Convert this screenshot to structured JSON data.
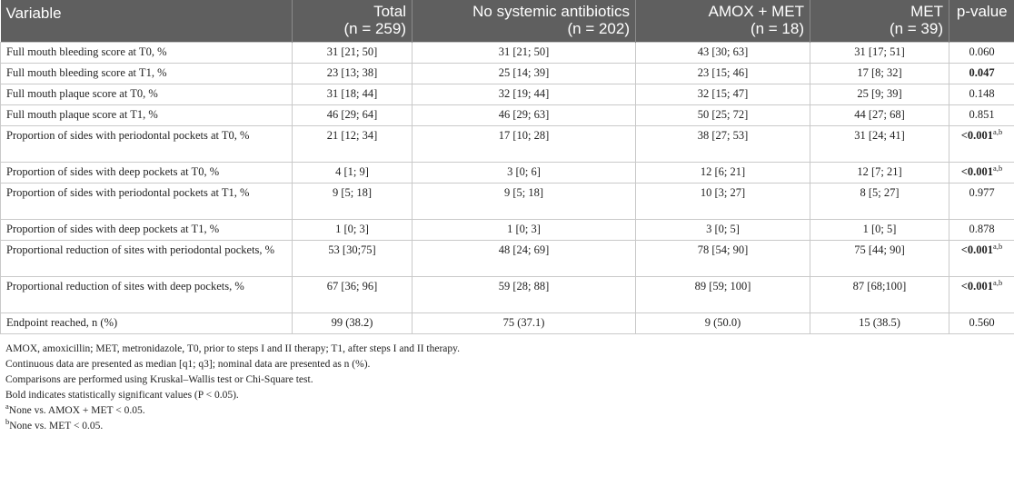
{
  "table": {
    "headers": {
      "variable": "Variable",
      "total": {
        "label": "Total",
        "n": "(n = 259)"
      },
      "no_antibiotics": {
        "label": "No systemic antibiotics",
        "n": "(n = 202)"
      },
      "amox_met": {
        "label": "AMOX + MET",
        "n": "(n = 18)"
      },
      "met": {
        "label": "MET",
        "n": "(n = 39)"
      },
      "pvalue": "p-value"
    },
    "rows": [
      {
        "variable": "Full mouth bleeding score at T0, %",
        "total": "31 [21; 50]",
        "no_antibiotics": "31 [21; 50]",
        "amox_met": "43 [30; 63]",
        "met": "31 [17; 51]",
        "p": "0.060",
        "sup": ""
      },
      {
        "variable": "Full mouth bleeding score at T1, %",
        "total": "23 [13; 38]",
        "no_antibiotics": "25 [14; 39]",
        "amox_met": "23 [15; 46]",
        "met": "17 [8; 32]",
        "p": "0.047",
        "sup": ""
      },
      {
        "variable": "Full mouth plaque score at T0, %",
        "total": "31 [18; 44]",
        "no_antibiotics": "32 [19; 44]",
        "amox_met": "32 [15; 47]",
        "met": "25 [9; 39]",
        "p": "0.148",
        "sup": ""
      },
      {
        "variable": "Full mouth plaque score at T1, %",
        "total": "46 [29; 64]",
        "no_antibiotics": "46 [29; 63]",
        "amox_met": "50 [25; 72]",
        "met": "44 [27; 68]",
        "p": "0.851",
        "sup": ""
      },
      {
        "variable": "Proportion of sides with periodontal pockets at T0, %",
        "total": "21 [12; 34]",
        "no_antibiotics": "17 [10; 28]",
        "amox_met": "38 [27; 53]",
        "met": "31 [24; 41]",
        "p": "<0.001",
        "sup": "a,b"
      },
      {
        "variable": "Proportion of sides with deep pockets at T0, %",
        "total": "4 [1; 9]",
        "no_antibiotics": "3 [0; 6]",
        "amox_met": "12 [6; 21]",
        "met": "12 [7; 21]",
        "p": "<0.001",
        "sup": "a,b"
      },
      {
        "variable": "Proportion of sides with periodontal pockets at T1, %",
        "total": "9 [5; 18]",
        "no_antibiotics": "9 [5; 18]",
        "amox_met": "10 [3; 27]",
        "met": "8 [5; 27]",
        "p": "0.977",
        "sup": ""
      },
      {
        "variable": "Proportion of sides with deep pockets at T1, %",
        "total": "1 [0; 3]",
        "no_antibiotics": "1 [0; 3]",
        "amox_met": "3 [0; 5]",
        "met": "1 [0; 5]",
        "p": "0.878",
        "sup": ""
      },
      {
        "variable": "Proportional reduction of sites with periodontal pockets, %",
        "total": "53 [30;75]",
        "no_antibiotics": "48 [24; 69]",
        "amox_met": "78 [54; 90]",
        "met": "75 [44; 90]",
        "p": "<0.001",
        "sup": "a,b"
      },
      {
        "variable": "Proportional reduction of sites with deep pockets, %",
        "total": "67 [36; 96]",
        "no_antibiotics": "59 [28; 88]",
        "amox_met": "89 [59; 100]",
        "met": "87 [68;100]",
        "p": "<0.001",
        "sup": "a,b"
      },
      {
        "variable": "Endpoint reached, n (%)",
        "total": "99 (38.2)",
        "no_antibiotics": "75 (37.1)",
        "amox_met": "9 (50.0)",
        "met": "15 (38.5)",
        "p": "0.560",
        "sup": ""
      }
    ]
  },
  "notes": {
    "abbrev": "AMOX, amoxicillin; MET, metronidazole, T0, prior to steps I and II therapy; T1, after steps I and II therapy.",
    "continuous": "Continuous data are presented as median [q1; q3]; nominal data are presented as n (%).",
    "comparisons": "Comparisons are performed using Kruskal–Wallis test or Chi-Square test.",
    "bold": "Bold indicates statistically significant values (P < 0.05).",
    "a_mark": "a",
    "a_text": "None vs. AMOX + MET < 0.05.",
    "b_mark": "b",
    "b_text": "None vs. MET < 0.05."
  }
}
